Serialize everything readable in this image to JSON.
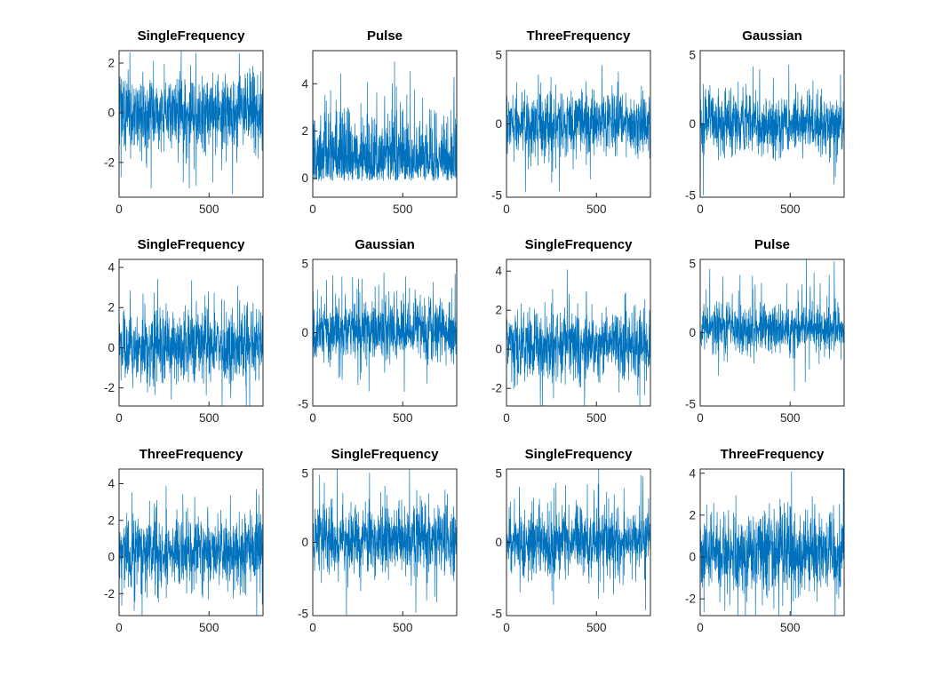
{
  "figure": {
    "background": "#ffffff",
    "line_color": "#0072BD",
    "axis_color": "#262626",
    "title_color": "#000000",
    "grid": "off",
    "layout": "3 rows x 4 columns of subplots",
    "description": "Grid of noisy signal waveform previews with class-name titles"
  },
  "chart_data": [
    {
      "type": "line",
      "title": "SingleFrequency",
      "legend": "none",
      "grid": "off",
      "n": 800,
      "xlim": [
        0,
        800
      ],
      "xticks": [
        0,
        500
      ],
      "ylim": [
        -3.4,
        2.5
      ],
      "yticks": [
        2,
        0,
        -2
      ],
      "seed": 101,
      "gen": {
        "kind": "gauss",
        "mean": 0,
        "std": 0.75,
        "spike_prob": 0.06,
        "spike_amp": 1.6,
        "pos_bias": 0.45
      }
    },
    {
      "type": "line",
      "title": "Pulse",
      "legend": "none",
      "grid": "off",
      "n": 800,
      "xlim": [
        0,
        800
      ],
      "xticks": [
        0,
        500
      ],
      "ylim": [
        -0.8,
        5.4
      ],
      "yticks": [
        4,
        2,
        0
      ],
      "seed": 102,
      "gen": {
        "kind": "abs",
        "mean": -0.1,
        "std": 1.25,
        "spike_prob": 0.05,
        "spike_amp": 1.8,
        "pos_bias": 0.95
      }
    },
    {
      "type": "line",
      "title": "ThreeFrequency",
      "legend": "none",
      "grid": "off",
      "n": 800,
      "xlim": [
        0,
        800
      ],
      "xticks": [
        0,
        500
      ],
      "ylim": [
        -5,
        5
      ],
      "yticks": [
        5,
        0,
        -5
      ],
      "seed": 103,
      "gen": {
        "kind": "gauss",
        "mean": 0,
        "std": 1.0,
        "spike_prob": 0.07,
        "spike_amp": 2.2,
        "pos_bias": 0.5
      }
    },
    {
      "type": "line",
      "title": "Gaussian",
      "legend": "none",
      "grid": "off",
      "n": 800,
      "xlim": [
        0,
        800
      ],
      "xticks": [
        0,
        500
      ],
      "ylim": [
        -5,
        5
      ],
      "yticks": [
        5,
        0,
        -5
      ],
      "seed": 104,
      "gen": {
        "kind": "gauss",
        "mean": 0,
        "std": 1.0,
        "spike_prob": 0.06,
        "spike_amp": 2.4,
        "pos_bias": 0.55
      }
    },
    {
      "type": "line",
      "title": "SingleFrequency",
      "legend": "none",
      "grid": "off",
      "n": 800,
      "xlim": [
        0,
        800
      ],
      "xticks": [
        0,
        500
      ],
      "ylim": [
        -2.9,
        4.4
      ],
      "yticks": [
        4,
        2,
        0,
        -2
      ],
      "seed": 105,
      "gen": {
        "kind": "gauss",
        "mean": 0.1,
        "std": 0.85,
        "spike_prob": 0.06,
        "spike_amp": 1.8,
        "pos_bias": 0.6
      }
    },
    {
      "type": "line",
      "title": "Gaussian",
      "legend": "none",
      "grid": "off",
      "n": 800,
      "xlim": [
        0,
        800
      ],
      "xticks": [
        0,
        500
      ],
      "ylim": [
        -5,
        5
      ],
      "yticks": [
        5,
        0,
        -5
      ],
      "seed": 106,
      "gen": {
        "kind": "gauss",
        "mean": 0.2,
        "std": 1.0,
        "spike_prob": 0.06,
        "spike_amp": 2.2,
        "pos_bias": 0.55
      }
    },
    {
      "type": "line",
      "title": "SingleFrequency",
      "legend": "none",
      "grid": "off",
      "n": 800,
      "xlim": [
        0,
        800
      ],
      "xticks": [
        0,
        500
      ],
      "ylim": [
        -2.9,
        4.6
      ],
      "yticks": [
        4,
        2,
        0,
        -2
      ],
      "seed": 107,
      "gen": {
        "kind": "gauss",
        "mean": 0.2,
        "std": 0.9,
        "spike_prob": 0.06,
        "spike_amp": 1.9,
        "pos_bias": 0.55
      }
    },
    {
      "type": "line",
      "title": "Pulse",
      "legend": "none",
      "grid": "off",
      "n": 800,
      "xlim": [
        0,
        800
      ],
      "xticks": [
        0,
        500
      ],
      "ylim": [
        -5,
        5
      ],
      "yticks": [
        5,
        0,
        -5
      ],
      "seed": 108,
      "gen": {
        "kind": "gauss",
        "mean": 0.2,
        "std": 0.8,
        "spike_prob": 0.06,
        "spike_amp": 2.5,
        "pos_bias": 0.8
      }
    },
    {
      "type": "line",
      "title": "ThreeFrequency",
      "legend": "none",
      "grid": "off",
      "n": 800,
      "xlim": [
        0,
        800
      ],
      "xticks": [
        0,
        500
      ],
      "ylim": [
        -3.2,
        4.8
      ],
      "yticks": [
        4,
        2,
        0,
        -2
      ],
      "seed": 109,
      "gen": {
        "kind": "gauss",
        "mean": 0.3,
        "std": 0.95,
        "spike_prob": 0.06,
        "spike_amp": 2.0,
        "pos_bias": 0.6
      }
    },
    {
      "type": "line",
      "title": "SingleFrequency",
      "legend": "none",
      "grid": "off",
      "n": 800,
      "xlim": [
        0,
        800
      ],
      "xticks": [
        0,
        500
      ],
      "ylim": [
        -5,
        5
      ],
      "yticks": [
        5,
        0,
        -5
      ],
      "seed": 110,
      "gen": {
        "kind": "gauss",
        "mean": 0.2,
        "std": 1.1,
        "spike_prob": 0.07,
        "spike_amp": 2.2,
        "pos_bias": 0.55
      }
    },
    {
      "type": "line",
      "title": "SingleFrequency",
      "legend": "none",
      "grid": "off",
      "n": 800,
      "xlim": [
        0,
        800
      ],
      "xticks": [
        0,
        500
      ],
      "ylim": [
        -5,
        5
      ],
      "yticks": [
        5,
        0,
        -5
      ],
      "seed": 111,
      "gen": {
        "kind": "gauss",
        "mean": 0.1,
        "std": 1.05,
        "spike_prob": 0.07,
        "spike_amp": 2.4,
        "pos_bias": 0.6
      }
    },
    {
      "type": "line",
      "title": "ThreeFrequency",
      "legend": "none",
      "grid": "off",
      "n": 800,
      "xlim": [
        0,
        800
      ],
      "xticks": [
        0,
        500
      ],
      "ylim": [
        -2.8,
        4.2
      ],
      "yticks": [
        4,
        2,
        0,
        -2
      ],
      "seed": 112,
      "gen": {
        "kind": "gauss",
        "mean": 0.2,
        "std": 0.9,
        "spike_prob": 0.06,
        "spike_amp": 1.8,
        "pos_bias": 0.55
      }
    }
  ]
}
